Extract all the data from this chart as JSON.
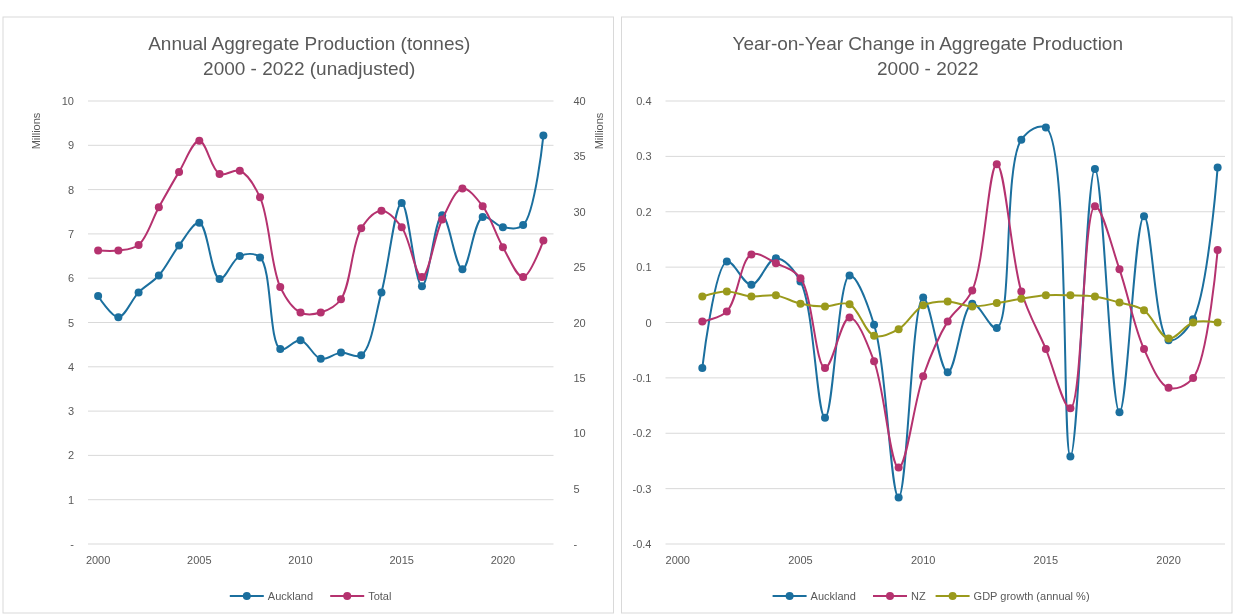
{
  "chart_data": [
    {
      "type": "line",
      "title": "Annual Aggregate Production (tonnes)\n2000 - 2022 (unadjusted)",
      "ylabel": "Millions",
      "y2label": "Millions",
      "x": [
        2000,
        2001,
        2002,
        2003,
        2004,
        2005,
        2006,
        2007,
        2008,
        2009,
        2010,
        2011,
        2012,
        2013,
        2014,
        2015,
        2016,
        2017,
        2018,
        2019,
        2020,
        2021,
        2022
      ],
      "xlim": [
        1999.5,
        2022.5
      ],
      "xticks": [
        2000,
        2005,
        2010,
        2015,
        2020
      ],
      "ylim": [
        0,
        10
      ],
      "yticks": [
        {
          "value": 0,
          "label": "-"
        },
        1,
        2,
        3,
        4,
        5,
        6,
        7,
        8,
        9,
        10
      ],
      "y2lim": [
        0,
        40
      ],
      "y2ticks": [
        {
          "value": 0,
          "label": "-"
        },
        5,
        10,
        15,
        20,
        25,
        30,
        35,
        40
      ],
      "grid": "y",
      "legend": "bottom",
      "marker": "circle",
      "series": [
        {
          "name": "Auckland",
          "color": "#1b6f9e",
          "values": [
            5.6,
            5.12,
            5.68,
            6.06,
            6.74,
            7.25,
            5.98,
            6.5,
            6.47,
            4.4,
            4.6,
            4.18,
            4.32,
            4.26,
            5.68,
            7.7,
            5.82,
            7.42,
            6.2,
            7.38,
            7.15,
            7.2,
            9.22
          ]
        },
        {
          "name": "Total",
          "color": "#b5326f",
          "axis": "y2",
          "values": [
            26.5,
            26.5,
            27.0,
            30.4,
            33.6,
            36.4,
            33.4,
            33.7,
            31.3,
            23.2,
            20.9,
            20.9,
            22.1,
            28.5,
            30.1,
            28.6,
            24.1,
            29.3,
            32.1,
            30.5,
            26.8,
            24.1,
            27.4
          ]
        }
      ]
    },
    {
      "type": "line",
      "title": "Year-on-Year Change in Aggregate Production\n2000 - 2022",
      "x": [
        2001,
        2002,
        2003,
        2004,
        2005,
        2006,
        2007,
        2008,
        2009,
        2010,
        2011,
        2012,
        2013,
        2014,
        2015,
        2016,
        2017,
        2018,
        2019,
        2020,
        2021,
        2022
      ],
      "xlim": [
        1999.5,
        2022.3
      ],
      "xticks": [
        2000,
        2005,
        2010,
        2015,
        2020
      ],
      "ylim": [
        -0.4,
        0.4
      ],
      "yticks": [
        -0.4,
        -0.3,
        -0.2,
        -0.1,
        0,
        0.1,
        0.2,
        0.3,
        0.4
      ],
      "grid": "y",
      "legend": "bottom",
      "marker": "circle",
      "series": [
        {
          "name": "Auckland",
          "color": "#1b6f9e",
          "values": [
            -0.082,
            0.11,
            0.068,
            0.116,
            0.074,
            -0.172,
            0.085,
            -0.004,
            -0.316,
            0.045,
            -0.09,
            0.034,
            -0.01,
            0.33,
            0.352,
            -0.242,
            0.277,
            -0.162,
            0.192,
            -0.032,
            0.006,
            0.28
          ]
        },
        {
          "name": "NZ",
          "color": "#b5326f",
          "values": [
            0.002,
            0.02,
            0.123,
            0.107,
            0.08,
            -0.082,
            0.009,
            -0.07,
            -0.262,
            -0.097,
            0.002,
            0.058,
            0.286,
            0.056,
            -0.048,
            -0.155,
            0.21,
            0.096,
            -0.048,
            -0.118,
            -0.1,
            0.131
          ]
        },
        {
          "name": "GDP growth (annual %)",
          "color": "#9a9a1c",
          "values": [
            0.047,
            0.056,
            0.047,
            0.049,
            0.034,
            0.029,
            0.033,
            -0.024,
            -0.012,
            0.031,
            0.038,
            0.029,
            0.035,
            0.043,
            0.049,
            0.049,
            0.047,
            0.036,
            0.022,
            -0.029,
            0.0,
            0.0
          ]
        }
      ]
    }
  ]
}
